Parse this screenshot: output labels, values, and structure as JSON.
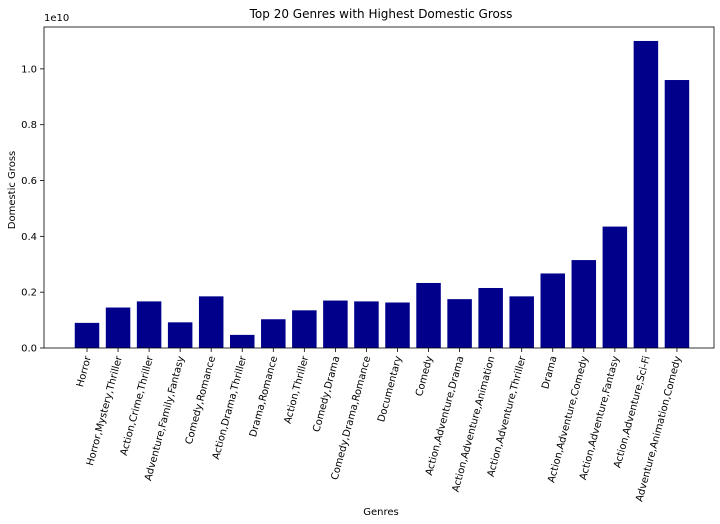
{
  "chart_data": {
    "type": "bar",
    "title": "Top 20 Genres with Highest Domestic Gross",
    "xlabel": "Genres",
    "ylabel": "Domestic Gross",
    "y_scale_label": "1e10",
    "y_tick_labels": [
      "0.0",
      "0.2",
      "0.4",
      "0.6",
      "0.8",
      "1.0"
    ],
    "y_tick_values": [
      0.0,
      0.2,
      0.4,
      0.6,
      0.8,
      1.0
    ],
    "ylim": [
      0,
      1.15
    ],
    "x_tick_rotation_deg": 75,
    "bar_color": "#00008b",
    "grid": false,
    "categories": [
      "Horror",
      "Horror,Mystery,Thriller",
      "Action,Crime,Thriller",
      "Adventure,Family,Fantasy",
      "Comedy,Romance",
      "Action,Drama,Thriller",
      "Drama,Romance",
      "Action,Thriller",
      "Comedy,Drama",
      "Comedy,Drama,Romance",
      "Documentary",
      "Comedy",
      "Action,Adventure,Drama",
      "Action,Adventure,Animation",
      "Action,Adventure,Thriller",
      "Drama",
      "Action,Adventure,Comedy",
      "Action,Adventure,Fantasy",
      "Action,Adventure,Sci-Fi",
      "Adventure,Animation,Comedy"
    ],
    "values": [
      0.09,
      0.145,
      0.167,
      0.092,
      0.185,
      0.047,
      0.103,
      0.135,
      0.17,
      0.167,
      0.163,
      0.233,
      0.175,
      0.215,
      0.185,
      0.267,
      0.315,
      0.435,
      1.1,
      0.96
    ]
  }
}
